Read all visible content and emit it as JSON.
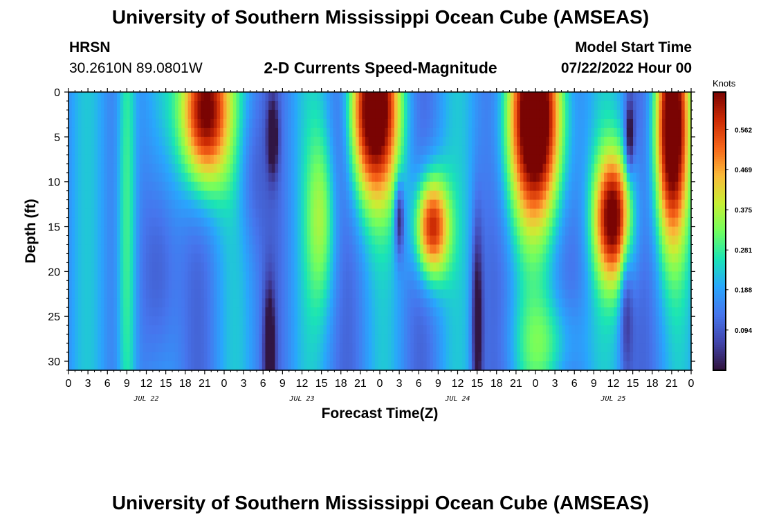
{
  "header": {
    "title": "University of Southern Mississippi Ocean Cube (AMSEAS)",
    "station": "HRSN",
    "coords": "30.2610N  89.0801W",
    "plot_title": "2-D Currents Speed-Magnitude",
    "model_label": "Model Start Time",
    "model_time": "07/22/2022 Hour 00"
  },
  "footer": {
    "title": "University of Southern Mississippi Ocean Cube (AMSEAS)"
  },
  "chart_data": {
    "type": "heatmap",
    "title": "2-D Currents Speed-Magnitude",
    "xlabel": "Forecast Time(Z)",
    "ylabel": "Depth (ft)",
    "x_ticks_hours": [
      0,
      3,
      6,
      9,
      12,
      15,
      18,
      21,
      24,
      27,
      30,
      33,
      36,
      39,
      42,
      45,
      48,
      51,
      54,
      57,
      60,
      63,
      66,
      69,
      72,
      75,
      78,
      81,
      84,
      87,
      90,
      93,
      96
    ],
    "x_tick_labels": [
      "0",
      "3",
      "6",
      "9",
      "12",
      "15",
      "18",
      "21",
      "0",
      "3",
      "6",
      "9",
      "12",
      "15",
      "18",
      "21",
      "0",
      "3",
      "6",
      "9",
      "12",
      "15",
      "18",
      "21",
      "0",
      "3",
      "6",
      "9",
      "12",
      "15",
      "18",
      "21",
      "0"
    ],
    "day_labels": [
      {
        "label": "JUL 22",
        "hour": 12
      },
      {
        "label": "JUL 23",
        "hour": 36
      },
      {
        "label": "JUL 24",
        "hour": 60
      },
      {
        "label": "JUL 25",
        "hour": 84
      }
    ],
    "xlim": [
      0,
      96
    ],
    "ylim": [
      31,
      0
    ],
    "y_ticks": [
      0,
      5,
      10,
      15,
      20,
      25,
      30
    ],
    "y_tick_labels": [
      "0",
      "5",
      "10",
      "15",
      "20",
      "25",
      "30"
    ],
    "colorbar": {
      "units": "Knots",
      "range": [
        0,
        0.65
      ],
      "tick_labels": [
        "0.562",
        "0.469",
        "0.375",
        "0.281",
        "0.188",
        "0.094"
      ],
      "tick_values": [
        0.562,
        0.469,
        0.375,
        0.281,
        0.188,
        0.094
      ]
    },
    "field_description": "current speed (knots) vs forecast hour and depth; approximate peaks",
    "features": [
      {
        "hour": 9,
        "depth_ft": 15,
        "speed": 0.32
      },
      {
        "hour": 20,
        "depth_ft": 3,
        "speed": 0.62
      },
      {
        "hour": 31.5,
        "depth_ft": 5,
        "speed": 0.03
      },
      {
        "hour": 31,
        "depth_ft": 29,
        "speed": 0.02
      },
      {
        "hour": 39,
        "depth_ft": 14,
        "speed": 0.33
      },
      {
        "hour": 47,
        "depth_ft": 3,
        "speed": 0.63
      },
      {
        "hour": 51,
        "depth_ft": 14,
        "speed": 0.05
      },
      {
        "hour": 56,
        "depth_ft": 14,
        "speed": 0.6
      },
      {
        "hour": 63,
        "depth_ft": 28,
        "speed": 0.02
      },
      {
        "hour": 72,
        "depth_ft": 4,
        "speed": 0.65
      },
      {
        "hour": 84,
        "depth_ft": 14,
        "speed": 0.6
      },
      {
        "hour": 86.5,
        "depth_ft": 5,
        "speed": 0.02
      },
      {
        "hour": 92,
        "depth_ft": 4,
        "speed": 0.65
      }
    ]
  }
}
